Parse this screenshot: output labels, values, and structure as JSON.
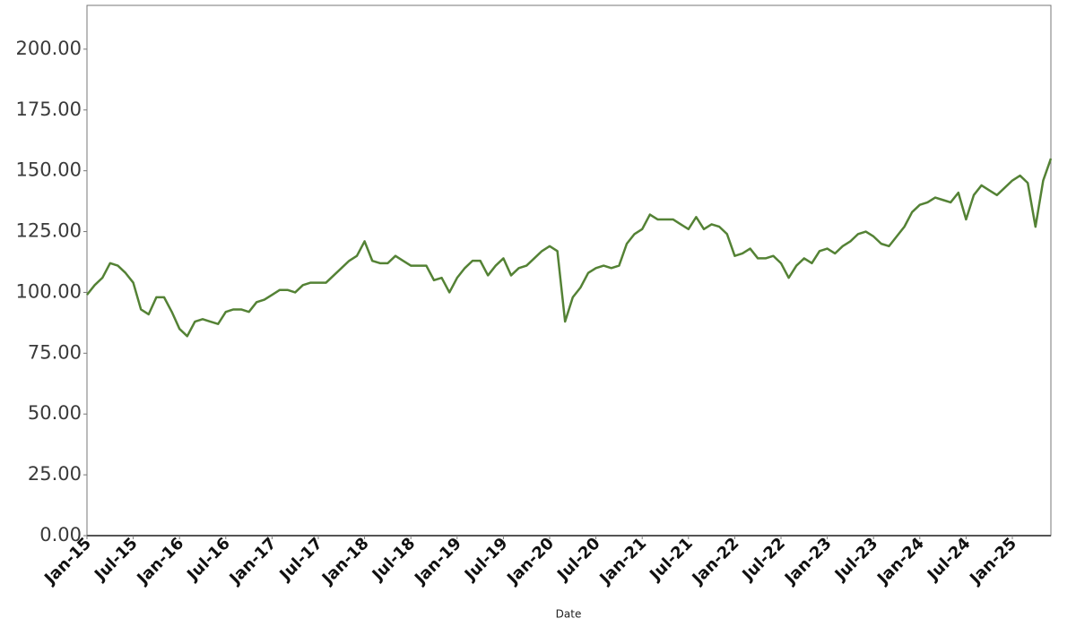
{
  "chart_data": {
    "type": "line",
    "x_label": "Date",
    "x": [
      "2015-01",
      "2015-02",
      "2015-03",
      "2015-04",
      "2015-05",
      "2015-06",
      "2015-07",
      "2015-08",
      "2015-09",
      "2015-10",
      "2015-11",
      "2015-12",
      "2016-01",
      "2016-02",
      "2016-03",
      "2016-04",
      "2016-05",
      "2016-06",
      "2016-07",
      "2016-08",
      "2016-09",
      "2016-10",
      "2016-11",
      "2016-12",
      "2017-01",
      "2017-02",
      "2017-03",
      "2017-04",
      "2017-05",
      "2017-06",
      "2017-07",
      "2017-08",
      "2017-09",
      "2017-10",
      "2017-11",
      "2017-12",
      "2018-01",
      "2018-02",
      "2018-03",
      "2018-04",
      "2018-05",
      "2018-06",
      "2018-07",
      "2018-08",
      "2018-09",
      "2018-10",
      "2018-11",
      "2018-12",
      "2019-01",
      "2019-02",
      "2019-03",
      "2019-04",
      "2019-05",
      "2019-06",
      "2019-07",
      "2019-08",
      "2019-09",
      "2019-10",
      "2019-11",
      "2019-12",
      "2020-01",
      "2020-02",
      "2020-03",
      "2020-04",
      "2020-05",
      "2020-06",
      "2020-07",
      "2020-08",
      "2020-09",
      "2020-10",
      "2020-11",
      "2020-12",
      "2021-01",
      "2021-02",
      "2021-03",
      "2021-04",
      "2021-05",
      "2021-06",
      "2021-07",
      "2021-08",
      "2021-09",
      "2021-10",
      "2021-11",
      "2021-12",
      "2022-01",
      "2022-02",
      "2022-03",
      "2022-04",
      "2022-05",
      "2022-06",
      "2022-07",
      "2022-08",
      "2022-09",
      "2022-10",
      "2022-11",
      "2022-12",
      "2023-01",
      "2023-02",
      "2023-03",
      "2023-04",
      "2023-05",
      "2023-06",
      "2023-07",
      "2023-08",
      "2023-09",
      "2023-10",
      "2023-11",
      "2023-12",
      "2024-01",
      "2024-02",
      "2024-03",
      "2024-04",
      "2024-05",
      "2024-06",
      "2024-07",
      "2024-08",
      "2024-09",
      "2024-10",
      "2024-11",
      "2024-12",
      "2025-01",
      "2025-02",
      "2025-03",
      "2025-04",
      "2025-05",
      "2025-06"
    ],
    "values": [
      99,
      103,
      106,
      112,
      111,
      108,
      104,
      93,
      91,
      98,
      98,
      92,
      85,
      82,
      88,
      89,
      88,
      87,
      92,
      93,
      93,
      92,
      96,
      97,
      99,
      101,
      101,
      100,
      103,
      104,
      104,
      104,
      107,
      110,
      113,
      115,
      121,
      113,
      112,
      112,
      115,
      113,
      111,
      111,
      111,
      105,
      106,
      100,
      106,
      110,
      113,
      113,
      107,
      111,
      114,
      107,
      110,
      111,
      114,
      117,
      119,
      117,
      88,
      98,
      102,
      108,
      110,
      111,
      110,
      111,
      120,
      124,
      126,
      132,
      130,
      130,
      130,
      128,
      126,
      131,
      126,
      128,
      127,
      124,
      115,
      116,
      118,
      114,
      114,
      115,
      112,
      106,
      111,
      114,
      112,
      117,
      118,
      116,
      119,
      121,
      124,
      125,
      123,
      120,
      119,
      123,
      127,
      133,
      136,
      137,
      139,
      138,
      137,
      141,
      130,
      140,
      144,
      142,
      140,
      143,
      146,
      148,
      145,
      127,
      146,
      155
    ],
    "color": "#548235",
    "xlim": [
      "2015-01",
      "2025-06"
    ],
    "xticks": [
      {
        "value": "2015-01",
        "label": "Jan-15"
      },
      {
        "value": "2015-07",
        "label": "Jul-15"
      },
      {
        "value": "2016-01",
        "label": "Jan-16"
      },
      {
        "value": "2016-07",
        "label": "Jul-16"
      },
      {
        "value": "2017-01",
        "label": "Jan-17"
      },
      {
        "value": "2017-07",
        "label": "Jul-17"
      },
      {
        "value": "2018-01",
        "label": "Jan-18"
      },
      {
        "value": "2018-07",
        "label": "Jul-18"
      },
      {
        "value": "2019-01",
        "label": "Jan-19"
      },
      {
        "value": "2019-07",
        "label": "Jul-19"
      },
      {
        "value": "2020-01",
        "label": "Jan-20"
      },
      {
        "value": "2020-07",
        "label": "Jul-20"
      },
      {
        "value": "2021-01",
        "label": "Jan-21"
      },
      {
        "value": "2021-07",
        "label": "Jul-21"
      },
      {
        "value": "2022-01",
        "label": "Jan-22"
      },
      {
        "value": "2022-07",
        "label": "Jul-22"
      },
      {
        "value": "2023-01",
        "label": "Jan-23"
      },
      {
        "value": "2023-07",
        "label": "Jul-23"
      },
      {
        "value": "2024-01",
        "label": "Jan-24"
      },
      {
        "value": "2024-07",
        "label": "Jul-24"
      },
      {
        "value": "2025-01",
        "label": "Jan-25"
      }
    ],
    "ylim": [
      0,
      218
    ],
    "yticks": [
      {
        "value": 0,
        "label": "0.00"
      },
      {
        "value": 25,
        "label": "25.00"
      },
      {
        "value": 50,
        "label": "50.00"
      },
      {
        "value": 75,
        "label": "75.00"
      },
      {
        "value": 100,
        "label": "100.00"
      },
      {
        "value": 125,
        "label": "125.00"
      },
      {
        "value": 150,
        "label": "150.00"
      },
      {
        "value": 175,
        "label": "175.00"
      },
      {
        "value": 200,
        "label": "200.00"
      }
    ]
  }
}
